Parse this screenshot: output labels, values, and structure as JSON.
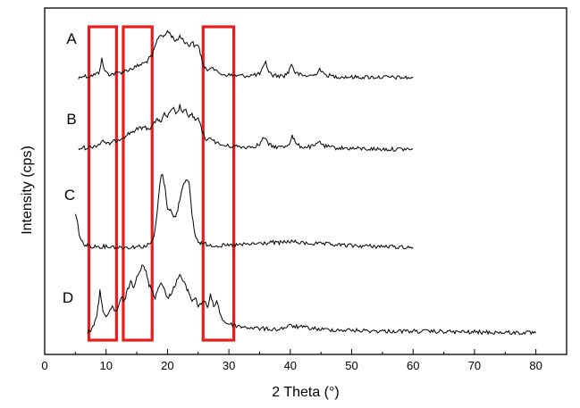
{
  "chart_data": {
    "type": "line",
    "xlabel": "2 Theta (°)",
    "ylabel": "Intensity (cps)",
    "xlim": [
      0,
      85
    ],
    "xticks": [
      0,
      10,
      20,
      30,
      40,
      50,
      60,
      70,
      80
    ],
    "yticks": [],
    "grid": false,
    "legend": "none",
    "colors": {
      "line": "#000000",
      "highlight": "#e81e1e",
      "axis": "#000000"
    },
    "series": [
      {
        "name": "A",
        "x": [
          5.5,
          6,
          7,
          8,
          8.8,
          9.3,
          9.8,
          10.5,
          11.5,
          12.5,
          13.5,
          14.5,
          15.5,
          16.5,
          17,
          17.5,
          18,
          18.5,
          19,
          19.5,
          20,
          20.5,
          21,
          21.5,
          22,
          22.5,
          23,
          23.5,
          24,
          24.5,
          25,
          25.5,
          26,
          26.5,
          27.2,
          28,
          29,
          30,
          31,
          32,
          33,
          34,
          35,
          35.6,
          36,
          36.5,
          37,
          38,
          39,
          39.7,
          40.2,
          40.8,
          42,
          43,
          44,
          44.8,
          45.4,
          47,
          50,
          55,
          60
        ],
        "y": [
          0,
          4,
          3,
          5,
          8,
          27,
          10,
          6,
          7,
          9,
          12,
          15,
          19,
          23,
          28,
          32,
          45,
          58,
          62,
          58,
          67,
          62,
          56,
          52,
          60,
          55,
          50,
          46,
          52,
          44,
          48,
          30,
          14,
          12,
          18,
          9,
          6,
          5,
          4,
          4,
          4,
          5,
          6,
          15,
          22,
          10,
          5,
          4,
          4,
          9,
          21,
          8,
          4,
          4,
          5,
          14,
          6,
          3,
          2,
          2,
          1
        ]
      },
      {
        "name": "B",
        "x": [
          5.5,
          6,
          7,
          8,
          9,
          9.5,
          10,
          11,
          12,
          13,
          14,
          15,
          16,
          17,
          17.5,
          18,
          18.5,
          19,
          19.5,
          20,
          20.5,
          21,
          21.5,
          22,
          22.5,
          23,
          23.5,
          24,
          24.5,
          25,
          25.5,
          26,
          26.5,
          27.2,
          28,
          29,
          30,
          31,
          32,
          33,
          34,
          35,
          35.7,
          36.3,
          37,
          38,
          39,
          39.8,
          40.3,
          41,
          42,
          43,
          44,
          44.8,
          45.4,
          47,
          50,
          55,
          60
        ],
        "y": [
          0,
          3,
          3,
          5,
          8,
          14,
          7,
          10,
          14,
          18,
          23,
          27,
          30,
          28,
          33,
          37,
          40,
          38,
          47,
          44,
          50,
          54,
          47,
          58,
          49,
          52,
          44,
          47,
          38,
          42,
          28,
          18,
          12,
          16,
          9,
          6,
          5,
          5,
          4,
          4,
          5,
          7,
          17,
          9,
          5,
          4,
          4,
          8,
          19,
          7,
          4,
          4,
          5,
          12,
          5,
          3,
          2,
          1,
          1
        ]
      },
      {
        "name": "C",
        "x": [
          5,
          5.3,
          5.6,
          6,
          6.5,
          7,
          8,
          9,
          10,
          11,
          12,
          13,
          14,
          15,
          16,
          17,
          17.8,
          18.3,
          18.8,
          19.2,
          19.6,
          20,
          20.5,
          21,
          21.5,
          22,
          22.5,
          23,
          23.5,
          24,
          24.5,
          25,
          25.5,
          26,
          27,
          28,
          29,
          30,
          32,
          34,
          36,
          37,
          38,
          40,
          42,
          45,
          50,
          55,
          60
        ],
        "y": [
          40,
          32,
          18,
          8,
          4,
          3,
          2,
          2,
          2,
          2,
          1,
          1,
          1,
          2,
          2,
          4,
          12,
          40,
          80,
          88,
          70,
          48,
          45,
          36,
          40,
          58,
          74,
          82,
          76,
          40,
          15,
          8,
          6,
          5,
          4,
          3,
          3,
          3,
          4,
          5,
          6,
          7,
          6,
          8,
          6,
          5,
          3,
          2,
          1
        ]
      },
      {
        "name": "D",
        "x": [
          7,
          7.5,
          8,
          8.5,
          9,
          9.5,
          10,
          10.5,
          11,
          11.5,
          12,
          12.5,
          13,
          13.5,
          14,
          14.5,
          15,
          15.5,
          16,
          16.5,
          17,
          17.5,
          18,
          18.5,
          19,
          19.5,
          20,
          20.5,
          21,
          21.5,
          22,
          22.5,
          23,
          23.5,
          24,
          24.5,
          25,
          25.5,
          26,
          26.5,
          27,
          27.5,
          28,
          28.5,
          29,
          30,
          32,
          35,
          38,
          40,
          45,
          50,
          55,
          60,
          70,
          80
        ],
        "y": [
          0,
          3,
          10,
          18,
          47,
          26,
          16,
          22,
          30,
          24,
          28,
          40,
          36,
          48,
          58,
          52,
          64,
          70,
          76,
          68,
          54,
          48,
          40,
          50,
          58,
          48,
          38,
          44,
          50,
          58,
          66,
          58,
          52,
          45,
          36,
          40,
          30,
          34,
          36,
          28,
          42,
          30,
          36,
          24,
          14,
          10,
          7,
          5,
          4,
          8,
          4,
          3,
          2,
          2,
          1,
          0
        ]
      }
    ]
  }
}
